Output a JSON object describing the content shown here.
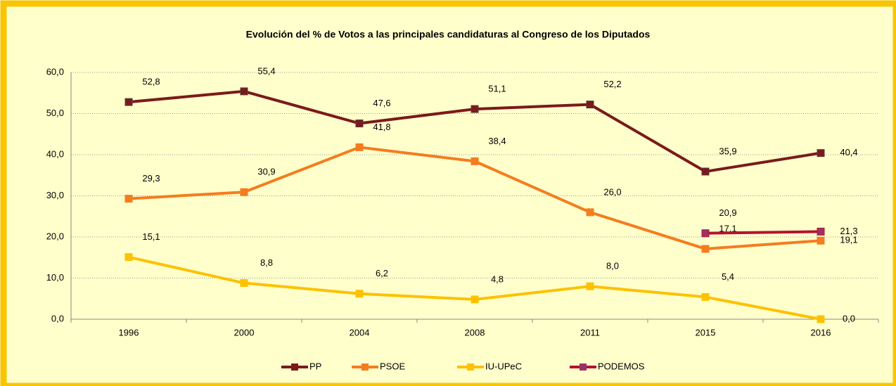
{
  "chart_data": {
    "type": "line",
    "title": "Evolución del % de Votos a las principales candidaturas al Congreso de los Diputados",
    "categories": [
      "1996",
      "2000",
      "2004",
      "2008",
      "2011",
      "2015",
      "2016"
    ],
    "series": [
      {
        "name": "PP",
        "color": "#7b1a1a",
        "values": [
          52.8,
          55.4,
          47.6,
          51.1,
          52.2,
          35.9,
          40.4
        ],
        "value_labels": [
          "52,8",
          "55,4",
          "47,6",
          "51,1",
          "52,2",
          "35,9",
          "40,4"
        ]
      },
      {
        "name": "PSOE",
        "color": "#f47d1f",
        "values": [
          29.3,
          30.9,
          41.8,
          38.4,
          26.0,
          17.1,
          19.1
        ],
        "value_labels": [
          "29,3",
          "30,9",
          "41,8",
          "38,4",
          "26,0",
          "17,1",
          "19,1"
        ]
      },
      {
        "name": "IU-UPeC",
        "color": "#fcc200",
        "values": [
          15.1,
          8.8,
          6.2,
          4.8,
          8.0,
          5.4,
          0.0
        ],
        "value_labels": [
          "15,1",
          "8,8",
          "6,2",
          "4,8",
          "8,0",
          "5,4",
          "0,0"
        ]
      },
      {
        "name": "PODEMOS",
        "color": "#b5122e",
        "values": [
          null,
          null,
          null,
          null,
          null,
          20.9,
          21.3
        ],
        "value_labels": [
          null,
          null,
          null,
          null,
          null,
          "20,9",
          "21,3"
        ]
      }
    ],
    "ylim": [
      0,
      60
    ],
    "yticks": [
      {
        "value": 0,
        "label": "0,0"
      },
      {
        "value": 10,
        "label": "10,0"
      },
      {
        "value": 20,
        "label": "20,0"
      },
      {
        "value": 30,
        "label": "30,0"
      },
      {
        "value": 40,
        "label": "40,0"
      },
      {
        "value": 50,
        "label": "50,0"
      },
      {
        "value": 60,
        "label": "60,0"
      }
    ],
    "grid": true,
    "legend": "bottom"
  }
}
